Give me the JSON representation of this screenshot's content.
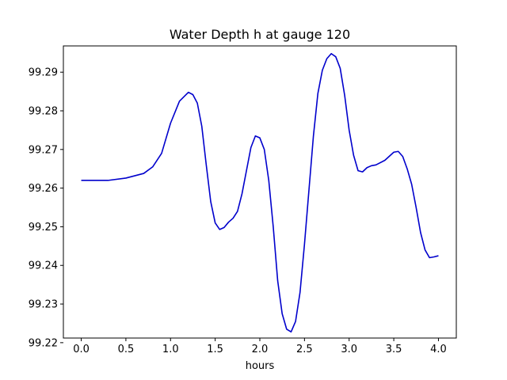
{
  "chart_data": {
    "type": "line",
    "title": "Water Depth h at gauge 120",
    "xlabel": "hours",
    "ylabel": "",
    "xlim": [
      -0.2,
      4.2
    ],
    "ylim": [
      99.2212,
      99.2968
    ],
    "xticks": [
      "0.0",
      "0.5",
      "1.0",
      "1.5",
      "2.0",
      "2.5",
      "3.0",
      "3.5",
      "4.0"
    ],
    "yticks": [
      "99.22",
      "99.23",
      "99.24",
      "99.25",
      "99.26",
      "99.27",
      "99.28",
      "99.29"
    ],
    "grid": false,
    "series": [
      {
        "color": "#0000cc",
        "x": [
          0.0,
          0.3,
          0.5,
          0.7,
          0.8,
          0.9,
          1.0,
          1.1,
          1.2,
          1.25,
          1.3,
          1.35,
          1.4,
          1.45,
          1.5,
          1.55,
          1.6,
          1.65,
          1.7,
          1.75,
          1.8,
          1.85,
          1.9,
          1.95,
          2.0,
          2.05,
          2.1,
          2.15,
          2.2,
          2.25,
          2.3,
          2.35,
          2.4,
          2.45,
          2.5,
          2.55,
          2.6,
          2.65,
          2.7,
          2.75,
          2.8,
          2.85,
          2.9,
          2.95,
          3.0,
          3.05,
          3.1,
          3.15,
          3.2,
          3.25,
          3.3,
          3.4,
          3.5,
          3.55,
          3.6,
          3.65,
          3.7,
          3.75,
          3.8,
          3.85,
          3.9,
          3.95,
          4.0
        ],
        "values": [
          99.262,
          99.262,
          99.2626,
          99.2638,
          99.2655,
          99.269,
          99.2768,
          99.2825,
          99.2848,
          99.2842,
          99.282,
          99.276,
          99.266,
          99.2565,
          99.251,
          99.2493,
          99.2498,
          99.2512,
          99.2522,
          99.254,
          99.2585,
          99.2645,
          99.2705,
          99.2735,
          99.273,
          99.27,
          99.262,
          99.25,
          99.236,
          99.2275,
          99.2235,
          99.2228,
          99.2255,
          99.233,
          99.2455,
          99.2595,
          99.2735,
          99.2845,
          99.2905,
          99.2935,
          99.2948,
          99.294,
          99.291,
          99.284,
          99.275,
          99.2685,
          99.2645,
          99.2642,
          99.2653,
          99.2658,
          99.266,
          99.2672,
          99.2693,
          99.2695,
          99.2682,
          99.265,
          99.261,
          99.255,
          99.2485,
          99.244,
          99.242,
          99.2422,
          99.2425
        ]
      }
    ]
  }
}
